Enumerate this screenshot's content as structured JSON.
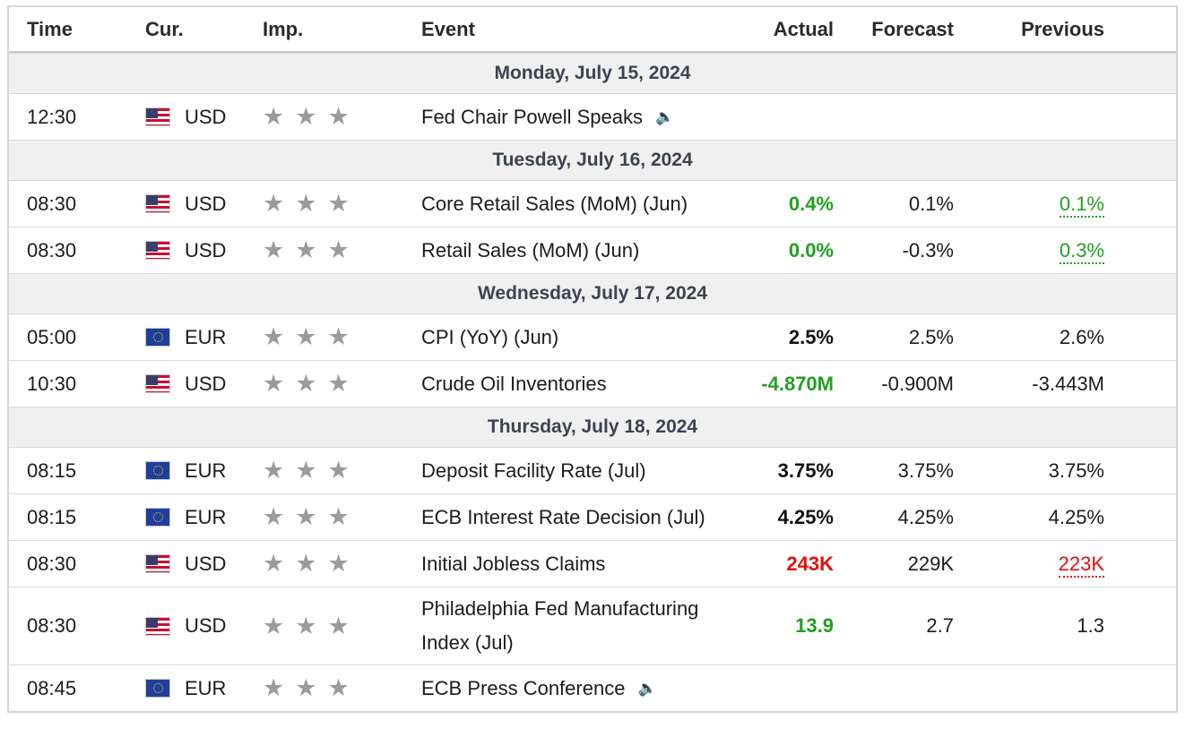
{
  "headers": {
    "time": "Time",
    "cur": "Cur.",
    "imp": "Imp.",
    "event": "Event",
    "actual": "Actual",
    "forecast": "Forecast",
    "previous": "Previous"
  },
  "colors": {
    "positive": "#21a021",
    "negative": "#e01010",
    "star": "#9b9b9b",
    "day_bg": "#f0f0f0"
  },
  "days": [
    {
      "label": "Monday, July 15, 2024",
      "events": [
        {
          "time": "12:30",
          "currency": "USD",
          "flag": "us-flag-icon",
          "event": "Fed Chair Powell Speaks",
          "speaker": true,
          "actual": "",
          "forecast": "",
          "previous": "",
          "actual_status": "",
          "previous_status": ""
        }
      ]
    },
    {
      "label": "Tuesday, July 16, 2024",
      "events": [
        {
          "time": "08:30",
          "currency": "USD",
          "flag": "us-flag-icon",
          "event": "Core Retail Sales (MoM) (Jun)",
          "speaker": false,
          "actual": "0.4%",
          "forecast": "0.1%",
          "previous": "0.1%",
          "actual_status": "green",
          "previous_status": "revised-green"
        },
        {
          "time": "08:30",
          "currency": "USD",
          "flag": "us-flag-icon",
          "event": "Retail Sales (MoM) (Jun)",
          "speaker": false,
          "actual": "0.0%",
          "forecast": "-0.3%",
          "previous": "0.3%",
          "actual_status": "green",
          "previous_status": "revised-green"
        }
      ]
    },
    {
      "label": "Wednesday, July 17, 2024",
      "events": [
        {
          "time": "05:00",
          "currency": "EUR",
          "flag": "eu-flag-icon",
          "event": "CPI (YoY) (Jun)",
          "speaker": false,
          "actual": "2.5%",
          "forecast": "2.5%",
          "previous": "2.6%",
          "actual_status": "black",
          "previous_status": ""
        },
        {
          "time": "10:30",
          "currency": "USD",
          "flag": "us-flag-icon",
          "event": "Crude Oil Inventories",
          "speaker": false,
          "actual": "-4.870M",
          "forecast": "-0.900M",
          "previous": "-3.443M",
          "actual_status": "green",
          "previous_status": ""
        }
      ]
    },
    {
      "label": "Thursday, July 18, 2024",
      "events": [
        {
          "time": "08:15",
          "currency": "EUR",
          "flag": "eu-flag-icon",
          "event": "Deposit Facility Rate (Jul)",
          "speaker": false,
          "actual": "3.75%",
          "forecast": "3.75%",
          "previous": "3.75%",
          "actual_status": "black",
          "previous_status": ""
        },
        {
          "time": "08:15",
          "currency": "EUR",
          "flag": "eu-flag-icon",
          "event": "ECB Interest Rate Decision (Jul)",
          "speaker": false,
          "actual": "4.25%",
          "forecast": "4.25%",
          "previous": "4.25%",
          "actual_status": "black",
          "previous_status": ""
        },
        {
          "time": "08:30",
          "currency": "USD",
          "flag": "us-flag-icon",
          "event": "Initial Jobless Claims",
          "speaker": false,
          "actual": "243K",
          "forecast": "229K",
          "previous": "223K",
          "actual_status": "red",
          "previous_status": "revised-red"
        },
        {
          "time": "08:30",
          "currency": "USD",
          "flag": "us-flag-icon",
          "event": "Philadelphia Fed Manufacturing Index (Jul)",
          "speaker": false,
          "tall": true,
          "actual": "13.9",
          "forecast": "2.7",
          "previous": "1.3",
          "actual_status": "green",
          "previous_status": ""
        },
        {
          "time": "08:45",
          "currency": "EUR",
          "flag": "eu-flag-icon",
          "event": "ECB Press Conference",
          "speaker": true,
          "actual": "",
          "forecast": "",
          "previous": "",
          "actual_status": "",
          "previous_status": ""
        }
      ]
    }
  ]
}
